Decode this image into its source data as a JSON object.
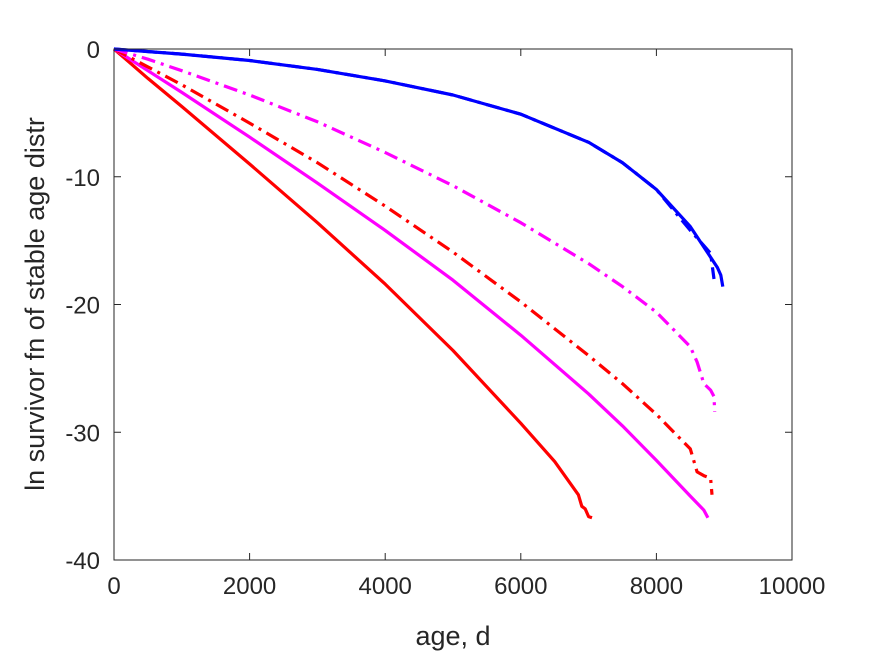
{
  "chart_data": {
    "type": "line",
    "title": "",
    "xlabel": "age, d",
    "ylabel": "ln survivor fn of stable age distr",
    "xlim": [
      0,
      10000
    ],
    "ylim": [
      -40,
      0
    ],
    "xticks": [
      0,
      2000,
      4000,
      6000,
      8000,
      10000
    ],
    "yticks": [
      0,
      -10,
      -20,
      -30,
      -40
    ],
    "xtick_labels": [
      "0",
      "2000",
      "4000",
      "6000",
      "8000",
      "10000"
    ],
    "ytick_labels": [
      "0",
      "-10",
      "-20",
      "-30",
      "-40"
    ],
    "grid": false,
    "legend": "none",
    "series": [
      {
        "color": "#ff0000",
        "style": "solid",
        "x": [
          0,
          500,
          1000,
          2000,
          3000,
          4000,
          5000,
          6000,
          6500,
          6850,
          6900,
          6950,
          7000,
          7050
        ],
        "y": [
          0,
          -2.3,
          -4.5,
          -9.0,
          -13.6,
          -18.4,
          -23.6,
          -29.3,
          -32.3,
          -34.9,
          -35.8,
          -36.0,
          -36.6,
          -36.7
        ]
      },
      {
        "color": "#ff00ff",
        "style": "solid",
        "x": [
          0,
          500,
          1000,
          2000,
          3000,
          4000,
          5000,
          6000,
          7000,
          7500,
          8000,
          8500,
          8700,
          8760
        ],
        "y": [
          0,
          -1.7,
          -3.4,
          -6.9,
          -10.5,
          -14.2,
          -18.1,
          -22.4,
          -27.0,
          -29.5,
          -32.2,
          -35.0,
          -36.1,
          -36.7
        ]
      },
      {
        "color": "#ff0000",
        "style": "dashdot",
        "x": [
          0,
          500,
          1000,
          2000,
          3000,
          4000,
          5000,
          6000,
          7000,
          7500,
          8000,
          8500,
          8600,
          8700,
          8800,
          8820
        ],
        "y": [
          0,
          -1.4,
          -2.8,
          -5.8,
          -8.9,
          -12.3,
          -15.9,
          -19.8,
          -24.0,
          -26.2,
          -28.6,
          -31.3,
          -33.1,
          -33.4,
          -33.6,
          -34.9
        ]
      },
      {
        "color": "#ff00ff",
        "style": "dashdot",
        "x": [
          0,
          500,
          1000,
          2000,
          3000,
          4000,
          5000,
          6000,
          7000,
          7500,
          8000,
          8500,
          8600,
          8700,
          8800,
          8850,
          8860
        ],
        "y": [
          0,
          -0.8,
          -1.7,
          -3.6,
          -5.7,
          -8.1,
          -10.7,
          -13.6,
          -16.8,
          -18.6,
          -20.6,
          -23.3,
          -24.5,
          -26.2,
          -26.7,
          -27.2,
          -28.4
        ]
      },
      {
        "color": "#0000ff",
        "style": "solid",
        "x": [
          0,
          1000,
          2000,
          3000,
          4000,
          5000,
          6000,
          7000,
          7500,
          8000,
          8500,
          8800,
          8900,
          8950,
          8980
        ],
        "y": [
          0,
          -0.4,
          -0.9,
          -1.6,
          -2.5,
          -3.6,
          -5.1,
          -7.3,
          -8.9,
          -11.0,
          -13.9,
          -16.3,
          -17.1,
          -17.7,
          -18.6
        ]
      },
      {
        "color": "#0000ff",
        "style": "dashdot",
        "x": [
          0,
          1000,
          2000,
          3000,
          4000,
          5000,
          6000,
          7000,
          7500,
          8000,
          8500,
          8700,
          8800,
          8850
        ],
        "y": [
          0,
          -0.4,
          -0.9,
          -1.6,
          -2.5,
          -3.6,
          -5.1,
          -7.3,
          -8.9,
          -11.0,
          -14.2,
          -15.4,
          -16.0,
          -18.0
        ]
      }
    ]
  }
}
